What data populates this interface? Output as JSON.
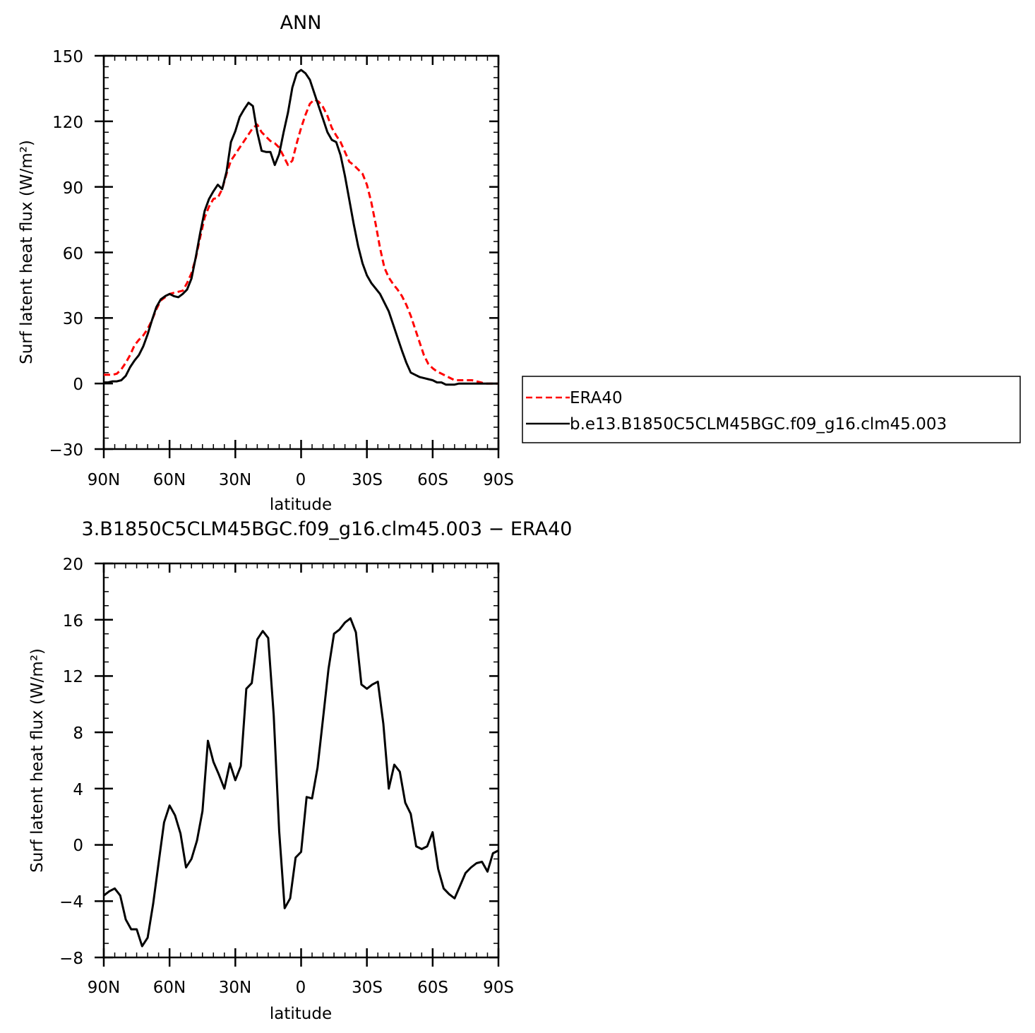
{
  "chart_data": [
    {
      "type": "line",
      "title": "ANN",
      "xlabel": "latitude",
      "ylabel": "Surf latent heat flux (W/m²)",
      "ylim": [
        -30,
        150
      ],
      "yticks": [
        -30,
        0,
        30,
        60,
        90,
        120,
        150
      ],
      "ytick_labels": [
        "−30",
        "0",
        "30",
        "60",
        "90",
        "120",
        "150"
      ],
      "xlim": [
        90,
        -90
      ],
      "xticks": [
        90,
        60,
        30,
        0,
        -30,
        -60,
        -90
      ],
      "xtick_labels": [
        "90N",
        "60N",
        "30N",
        "0",
        "30S",
        "60S",
        "90S"
      ],
      "grid": false,
      "legend_position": "right",
      "x": [
        90,
        88,
        86,
        84,
        82,
        80,
        78,
        76,
        74,
        72,
        70,
        68,
        66,
        64,
        62,
        60,
        58,
        56,
        54,
        52,
        50,
        48,
        46,
        44,
        42,
        40,
        38,
        36,
        34,
        32,
        30,
        28,
        26,
        24,
        22,
        20,
        18,
        16,
        14,
        12,
        10,
        8,
        6,
        4,
        2,
        0,
        -2,
        -4,
        -6,
        -8,
        -10,
        -12,
        -14,
        -16,
        -18,
        -20,
        -22,
        -24,
        -26,
        -28,
        -30,
        -32,
        -34,
        -36,
        -38,
        -40,
        -42,
        -44,
        -46,
        -48,
        -50,
        -52,
        -54,
        -56,
        -58,
        -60,
        -62,
        -64,
        -66,
        -68,
        -70,
        -72,
        -74,
        -76,
        -78,
        -80,
        -82,
        -84,
        -86,
        -88,
        -90
      ],
      "series": [
        {
          "name": "ERA40",
          "color": "#ff0000",
          "dash": "dashed",
          "values": [
            4,
            4,
            4,
            4.5,
            6.5,
            9.5,
            13,
            17.5,
            20,
            22,
            25,
            29,
            34,
            38,
            39.5,
            41,
            41.5,
            42,
            42.5,
            46,
            50.5,
            57.5,
            67,
            76,
            81,
            84.5,
            85,
            89,
            96,
            102,
            105,
            108,
            111,
            114,
            117,
            118.5,
            115,
            113,
            111,
            110,
            108,
            104,
            100,
            102,
            110,
            117,
            123,
            128,
            130,
            129,
            126.5,
            122.5,
            117,
            113.5,
            110.5,
            106,
            101.5,
            100,
            98,
            96,
            91,
            83,
            73,
            62,
            53,
            48.5,
            45.5,
            43,
            40,
            36,
            31,
            25,
            19,
            13,
            9,
            7,
            5.5,
            4.5,
            3.5,
            2.5,
            1.5,
            1.5,
            1.5,
            1.5,
            1.5,
            1,
            0.5,
            0,
            0,
            0,
            0
          ]
        },
        {
          "name": "b.e13.B1850C5CLM45BGC.f09_g16.clm45.003",
          "color": "#000000",
          "dash": "solid",
          "values": [
            0.5,
            0.5,
            1,
            1,
            1.5,
            3.5,
            7.5,
            10.5,
            13,
            17,
            22.5,
            29,
            35,
            38.5,
            40,
            41,
            40,
            39.5,
            41,
            43,
            48,
            58,
            69,
            79,
            84.5,
            88,
            91,
            89,
            97,
            110.5,
            115.5,
            122,
            125.5,
            128.5,
            127,
            115,
            106.5,
            106,
            106,
            100,
            105,
            115,
            124,
            135.5,
            142,
            143.5,
            142,
            139,
            133,
            127,
            121,
            115,
            111.5,
            110.5,
            104.5,
            95,
            84,
            73,
            63,
            55,
            49.5,
            46,
            43.5,
            41,
            37,
            33,
            27,
            21,
            15,
            9.5,
            5,
            4,
            3,
            2.5,
            2,
            1.5,
            0.5,
            0.5,
            -0.5,
            -0.5,
            -0.5,
            0,
            0,
            0,
            0,
            0,
            0,
            0,
            0,
            0,
            0
          ]
        }
      ]
    },
    {
      "type": "line",
      "title": "3.B1850C5CLM45BGC.f09_g16.clm45.003 − ERA40",
      "xlabel": "latitude",
      "ylabel": "Surf latent heat flux (W/m²)",
      "ylim": [
        -8,
        20
      ],
      "yticks": [
        -8,
        -4,
        0,
        4,
        8,
        12,
        16,
        20
      ],
      "ytick_labels": [
        "−8",
        "−4",
        "0",
        "4",
        "8",
        "12",
        "16",
        "20"
      ],
      "xlim": [
        90,
        -90
      ],
      "xticks": [
        90,
        60,
        30,
        0,
        -30,
        -60,
        -90
      ],
      "xtick_labels": [
        "90N",
        "60N",
        "30N",
        "0",
        "30S",
        "60S",
        "90S"
      ],
      "grid": false,
      "x": [
        90,
        87.5,
        85,
        82.5,
        80,
        77.5,
        75,
        72.5,
        70,
        67.5,
        65,
        62.5,
        60,
        57.5,
        55,
        52.5,
        50,
        47.5,
        45,
        42.5,
        40,
        37.5,
        35,
        32.5,
        30,
        27.5,
        25,
        22.5,
        20,
        17.5,
        15,
        12.5,
        10,
        7.5,
        5,
        2.5,
        0,
        -2.5,
        -5,
        -7.5,
        -10,
        -12.5,
        -15,
        -17.5,
        -20,
        -22.5,
        -25,
        -27.5,
        -30,
        -32.5,
        -35,
        -37.5,
        -40,
        -42.5,
        -45,
        -47.5,
        -50,
        -52.5,
        -55,
        -57.5,
        -60,
        -62.5,
        -65,
        -67.5,
        -70,
        -72.5,
        -75,
        -77.5,
        -80,
        -82.5,
        -85,
        -87.5,
        -90
      ],
      "series": [
        {
          "name": "",
          "color": "#000000",
          "dash": "solid",
          "values": [
            -3.6,
            -3.3,
            -3.1,
            -3.6,
            -5.3,
            -6,
            -6,
            -7.2,
            -6.6,
            -4.2,
            -1.3,
            1.6,
            2.8,
            2.1,
            0.8,
            -1.6,
            -1,
            0.3,
            2.4,
            7.4,
            5.9,
            5,
            4,
            5.8,
            4.6,
            5.6,
            11.1,
            11.5,
            14.6,
            15.2,
            14.7,
            9.2,
            1,
            -4.5,
            -3.8,
            -0.9,
            -0.5,
            3.4,
            3.3,
            5.5,
            9,
            12.5,
            15,
            15.3,
            15.8,
            16.1,
            15.1,
            11.4,
            11.1,
            11.4,
            11.6,
            8.6,
            4,
            5.7,
            5.2,
            3,
            2.2,
            -0.1,
            -0.3,
            -0.1,
            0.9,
            -1.7,
            -3.1,
            -3.5,
            -3.8,
            -2.9,
            -2,
            -1.6,
            -1.3,
            -1.2,
            -1.9,
            -0.6,
            -0.4
          ]
        }
      ]
    }
  ]
}
